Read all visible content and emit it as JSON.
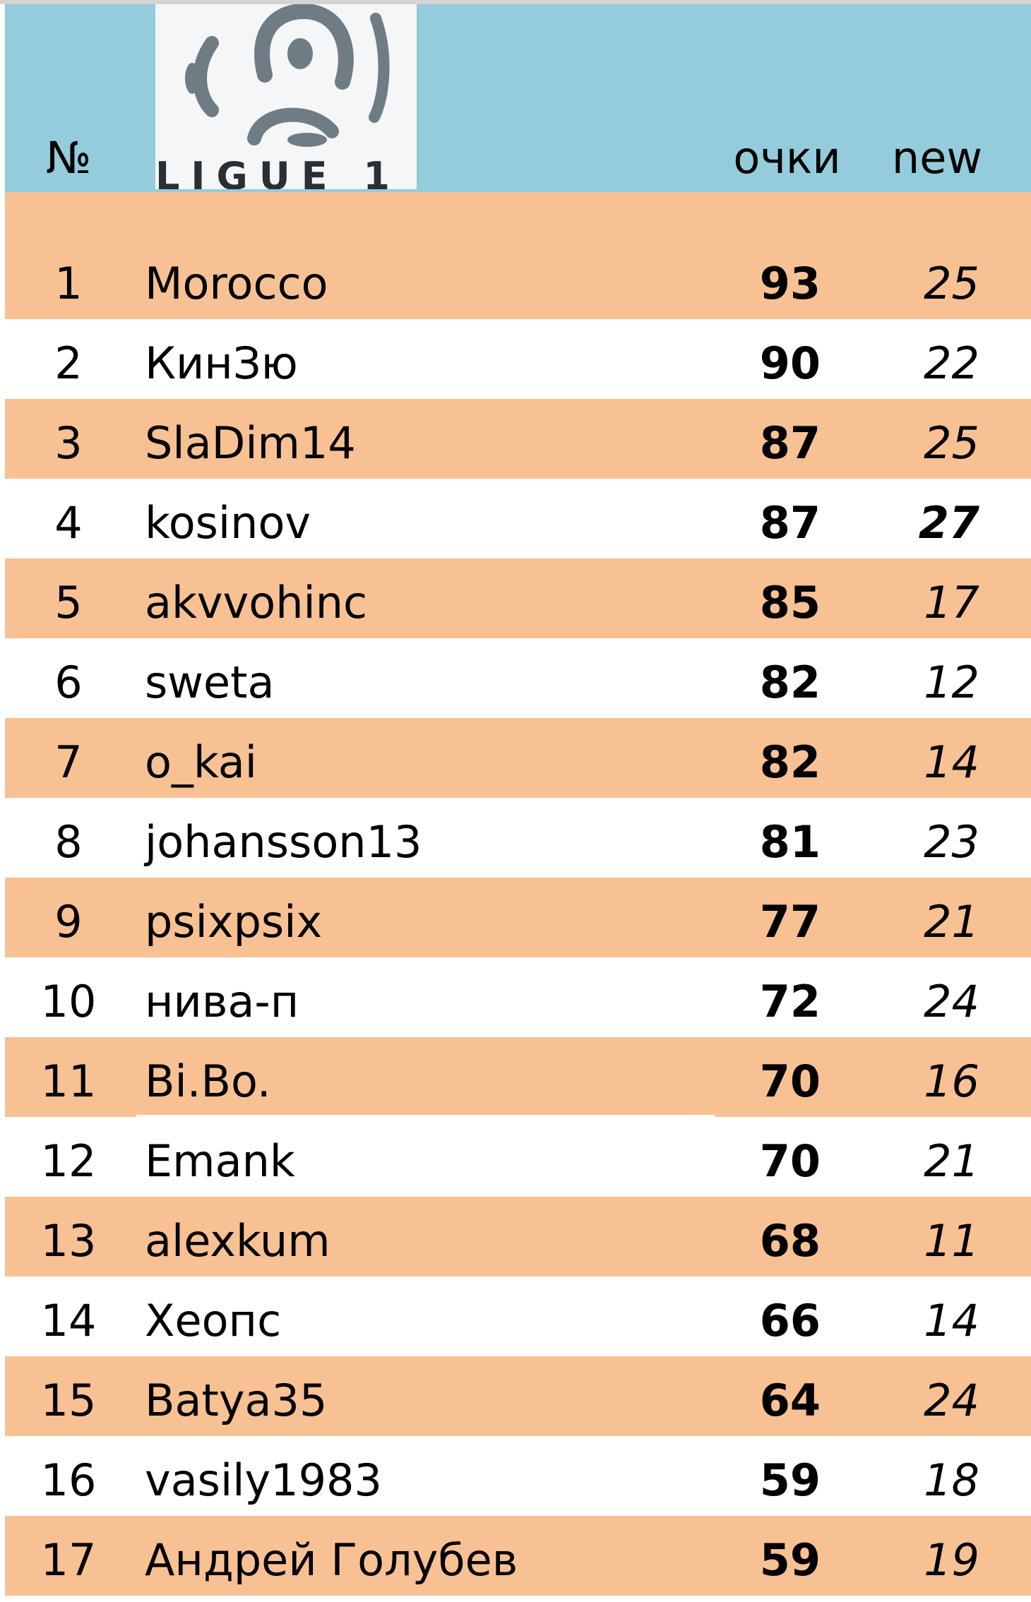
{
  "colors": {
    "header_bg": "#94ccdb",
    "stripe_bg": "#f8c194",
    "row_bg": "#ffffff"
  },
  "header": {
    "no_label": "№",
    "logo_text": "LIGUE 1",
    "points_label": "очки",
    "new_label": "new"
  },
  "rows": [
    {
      "no": "1",
      "name": "Morocco",
      "points": "93",
      "new": "25",
      "new_bold": false
    },
    {
      "no": "2",
      "name": "КинЗю",
      "points": "90",
      "new": "22",
      "new_bold": false
    },
    {
      "no": "3",
      "name": "SlaDim14",
      "points": "87",
      "new": "25",
      "new_bold": false
    },
    {
      "no": "4",
      "name": "kosinov",
      "points": "87",
      "new": "27",
      "new_bold": true
    },
    {
      "no": "5",
      "name": "akvvohinc",
      "points": "85",
      "new": "17",
      "new_bold": false
    },
    {
      "no": "6",
      "name": "sweta",
      "points": "82",
      "new": "12",
      "new_bold": false
    },
    {
      "no": "7",
      "name": "o_kai",
      "points": "82",
      "new": "14",
      "new_bold": false
    },
    {
      "no": "8",
      "name": "johansson13",
      "points": "81",
      "new": "23",
      "new_bold": false
    },
    {
      "no": "9",
      "name": "psixpsix",
      "points": "77",
      "new": "21",
      "new_bold": false
    },
    {
      "no": "10",
      "name": "нива-п",
      "points": "72",
      "new": "24",
      "new_bold": false
    },
    {
      "no": "11",
      "name": "Bi.Bo.",
      "points": "70",
      "new": "16",
      "new_bold": false
    },
    {
      "no": "12",
      "name": "Emank",
      "points": "70",
      "new": "21",
      "new_bold": false
    },
    {
      "no": "13",
      "name": "alexkum",
      "points": "68",
      "new": "11",
      "new_bold": false
    },
    {
      "no": "14",
      "name": "Хеопс",
      "points": "66",
      "new": "14",
      "new_bold": false
    },
    {
      "no": "15",
      "name": "Batya35",
      "points": "64",
      "new": "24",
      "new_bold": false
    },
    {
      "no": "16",
      "name": "vasily1983",
      "points": "59",
      "new": "18",
      "new_bold": false
    },
    {
      "no": "17",
      "name": "Андрей Голубев",
      "points": "59",
      "new": "19",
      "new_bold": false
    }
  ]
}
